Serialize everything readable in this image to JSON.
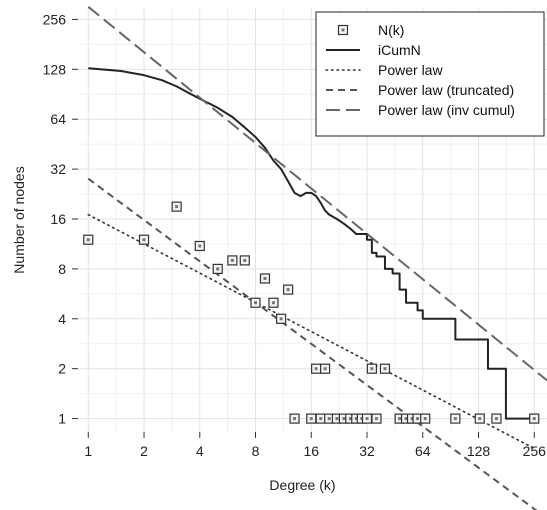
{
  "chart_data": {
    "type": "scatter",
    "xlabel": "Degree (k)",
    "ylabel": "Number of nodes",
    "x_scale": "log2",
    "y_scale": "log2",
    "xlim": [
      0.88,
      300
    ],
    "ylim": [
      0.83,
      300
    ],
    "x_ticks": [
      1,
      2,
      4,
      8,
      16,
      32,
      64,
      128,
      256
    ],
    "x_tick_labels": [
      "1",
      "2",
      "4",
      "8",
      "16",
      "32",
      "64",
      "128",
      "256"
    ],
    "y_ticks": [
      1,
      2,
      4,
      8,
      16,
      32,
      64,
      128,
      256
    ],
    "y_tick_labels": [
      "1",
      "2",
      "4",
      "8",
      "16",
      "32",
      "64",
      "128",
      "256"
    ],
    "grid": true,
    "legend_position": "top-right",
    "legend": [
      "N(k)",
      "iCumN",
      "Power law",
      "Power law (truncated)",
      "Power law (inv cumul)"
    ],
    "series": [
      {
        "name": "N(k)",
        "kind": "points",
        "x": [
          1,
          2,
          3,
          4,
          5,
          6,
          7,
          8,
          9,
          10,
          11,
          12,
          13,
          16,
          17,
          18,
          19,
          20,
          22,
          24,
          26,
          28,
          30,
          32,
          34,
          36,
          40,
          48,
          52,
          56,
          60,
          66,
          96,
          130,
          160,
          256
        ],
        "y": [
          12,
          12,
          19,
          11,
          8,
          9,
          9,
          5,
          7,
          5,
          4,
          6,
          1,
          1,
          2,
          1,
          2,
          1,
          1,
          1,
          1,
          1,
          1,
          1,
          2,
          1,
          2,
          1,
          1,
          1,
          1,
          1,
          1,
          1,
          1,
          1
        ]
      },
      {
        "name": "iCumN",
        "kind": "line",
        "x": [
          1,
          1.5,
          2,
          2.5,
          3,
          3.5,
          4,
          5,
          6,
          7,
          8,
          9,
          10,
          11,
          12,
          13,
          14,
          15,
          16,
          17,
          18,
          19,
          20,
          22,
          24,
          26,
          28,
          30,
          32,
          34,
          36,
          40,
          44,
          48,
          52,
          56,
          60,
          64,
          80,
          96,
          112,
          128,
          144,
          160,
          180,
          256
        ],
        "y": [
          130,
          125,
          118,
          110,
          101,
          92,
          85,
          75,
          66,
          57,
          50,
          43,
          36,
          32,
          27,
          23,
          22,
          23,
          23,
          22,
          20,
          18,
          17,
          16,
          15,
          14,
          13,
          13,
          12,
          10,
          9.5,
          8,
          7.5,
          6,
          5,
          5,
          4.5,
          4,
          4,
          3,
          3,
          3,
          2,
          2,
          1,
          1
        ],
        "step": true
      },
      {
        "name": "Power law",
        "kind": "line",
        "x": [
          1,
          256
        ],
        "y": [
          17,
          0.66
        ]
      },
      {
        "name": "Power law (truncated)",
        "kind": "line",
        "x": [
          1,
          300
        ],
        "y": [
          28,
          0.25
        ]
      },
      {
        "name": "Power law (inv cumul)",
        "kind": "line",
        "x": [
          1,
          300
        ],
        "y": [
          305,
          1.7
        ]
      }
    ]
  }
}
